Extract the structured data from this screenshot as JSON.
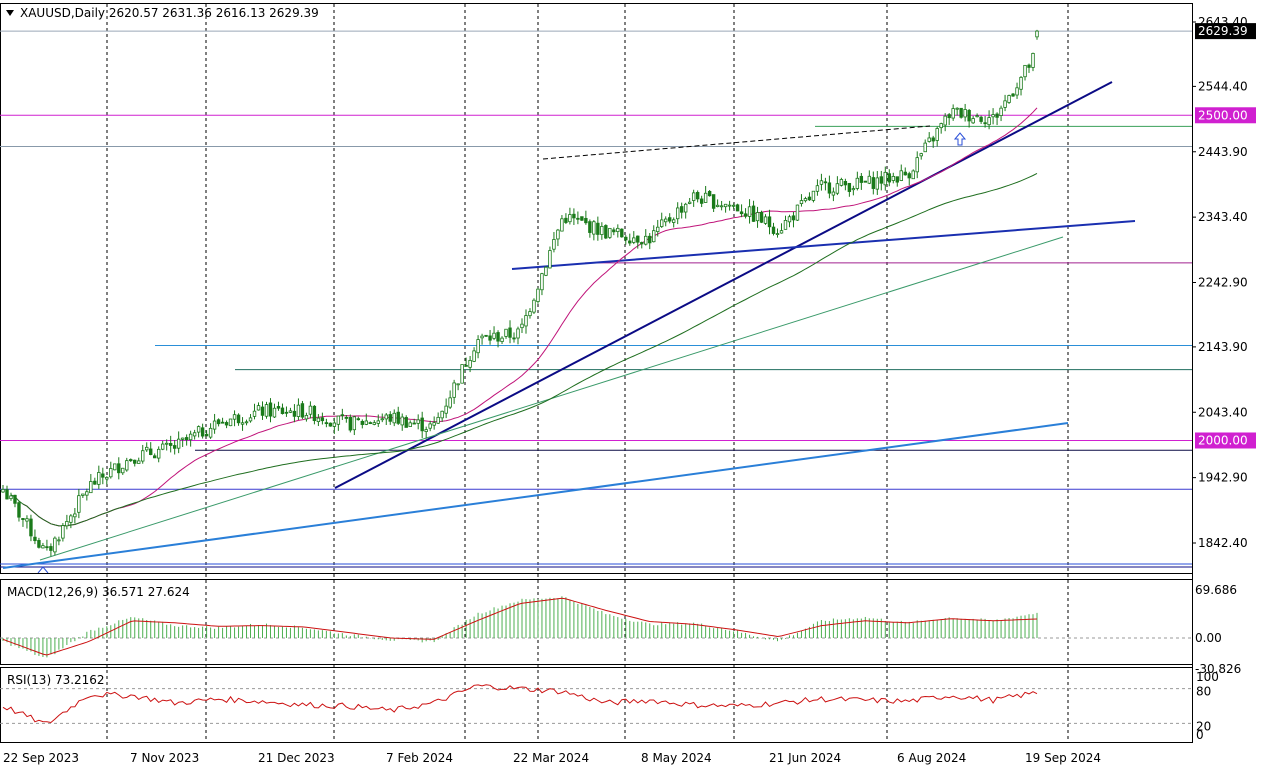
{
  "header": {
    "symbol_line": "XAUUSD,Daily  2620.57 2631.36 2616.13 2629.39",
    "macd_label": "MACD(12,26,9) 36.571 27.624",
    "rsi_label": "RSI(13) 73.2162"
  },
  "colors": {
    "candle": "#1a7a1a",
    "ma_fast": "#c0147a",
    "ma_slow": "#1f6e1f",
    "ma_slowest": "#3aa05a",
    "trend_main": "#0b0b85",
    "trend_blue": "#2a7fd8",
    "magenta_level": "#d020d0",
    "macd_hist": "#4caf50",
    "macd_signal": "#cc1111",
    "rsi_line": "#cc1111",
    "price_badge": "#000000"
  },
  "chart_data": [
    {
      "type": "line",
      "name": "price_panel",
      "title": "XAUUSD,Daily",
      "ohlc_last": {
        "open": 2620.57,
        "high": 2631.36,
        "low": 2616.13,
        "close": 2629.39
      },
      "y_ticks": [
        2643.4,
        2544.4,
        2443.9,
        2343.4,
        2242.9,
        2143.9,
        2043.4,
        1942.9,
        1842.4
      ],
      "ylim": [
        1800,
        2655
      ],
      "highlighted_levels": [
        "2629.39",
        "2500.00",
        "2000.00"
      ],
      "x_tick_labels": [
        "22 Sep 2023",
        "7 Nov 2023",
        "21 Dec 2023",
        "7 Feb 2024",
        "22 Mar 2024",
        "8 May 2024",
        "21 Jun 2024",
        "6 Aug 2024",
        "19 Sep 2024"
      ],
      "x_dates": [
        "2023-09-22",
        "2023-10-06",
        "2023-10-20",
        "2023-11-07",
        "2023-11-21",
        "2023-12-05",
        "2023-12-21",
        "2024-01-05",
        "2024-01-22",
        "2024-02-07",
        "2024-02-21",
        "2024-03-07",
        "2024-03-22",
        "2024-04-09",
        "2024-04-23",
        "2024-05-08",
        "2024-05-22",
        "2024-06-06",
        "2024-06-21",
        "2024-07-08",
        "2024-07-22",
        "2024-08-06",
        "2024-08-20",
        "2024-09-04",
        "2024-09-19"
      ],
      "close": [
        1925,
        1825,
        1930,
        1975,
        1990,
        2028,
        2045,
        2045,
        2025,
        2035,
        2020,
        2155,
        2165,
        2345,
        2320,
        2310,
        2375,
        2360,
        2325,
        2390,
        2395,
        2410,
        2505,
        2495,
        2595
      ]
    },
    {
      "type": "bar",
      "name": "macd_panel",
      "title": "MACD(12,26,9) 36.571 27.624",
      "y_ticks": [
        69.686,
        0.0,
        -30.826
      ],
      "ylim": [
        -35,
        75
      ],
      "x": [
        "2023-09-22",
        "2023-10-06",
        "2023-10-20",
        "2023-11-07",
        "2023-11-21",
        "2023-12-05",
        "2023-12-21",
        "2024-01-05",
        "2024-01-22",
        "2024-02-07",
        "2024-02-21",
        "2024-03-07",
        "2024-03-22",
        "2024-04-09",
        "2024-04-23",
        "2024-05-08",
        "2024-05-22",
        "2024-06-06",
        "2024-06-21",
        "2024-07-08",
        "2024-07-22",
        "2024-08-06",
        "2024-08-20",
        "2024-09-04",
        "2024-09-19"
      ],
      "histogram": [
        -5,
        -30,
        10,
        30,
        18,
        15,
        20,
        15,
        5,
        -3,
        -5,
        35,
        55,
        60,
        35,
        20,
        22,
        10,
        -5,
        25,
        30,
        22,
        30,
        25,
        36.571
      ],
      "signal": [
        -2,
        -25,
        -5,
        25,
        22,
        17,
        18,
        16,
        8,
        0,
        -2,
        25,
        50,
        58,
        40,
        24,
        20,
        12,
        2,
        18,
        25,
        22,
        28,
        25,
        27.624
      ]
    },
    {
      "type": "line",
      "name": "rsi_panel",
      "title": "RSI(13) 73.2162",
      "y_ticks": [
        100,
        80,
        20,
        0
      ],
      "ylim": [
        0,
        100
      ],
      "x": [
        "2023-09-22",
        "2023-10-06",
        "2023-10-20",
        "2023-11-07",
        "2023-11-21",
        "2023-12-05",
        "2023-12-21",
        "2024-01-05",
        "2024-01-22",
        "2024-02-07",
        "2024-02-21",
        "2024-03-07",
        "2024-03-22",
        "2024-04-09",
        "2024-04-23",
        "2024-05-08",
        "2024-05-22",
        "2024-06-06",
        "2024-06-21",
        "2024-07-08",
        "2024-07-22",
        "2024-08-06",
        "2024-08-20",
        "2024-09-04",
        "2024-09-19"
      ],
      "values": [
        50,
        18,
        70,
        68,
        55,
        62,
        58,
        52,
        50,
        42,
        55,
        85,
        80,
        75,
        55,
        60,
        52,
        50,
        55,
        62,
        60,
        58,
        68,
        60,
        73.2162
      ]
    }
  ]
}
